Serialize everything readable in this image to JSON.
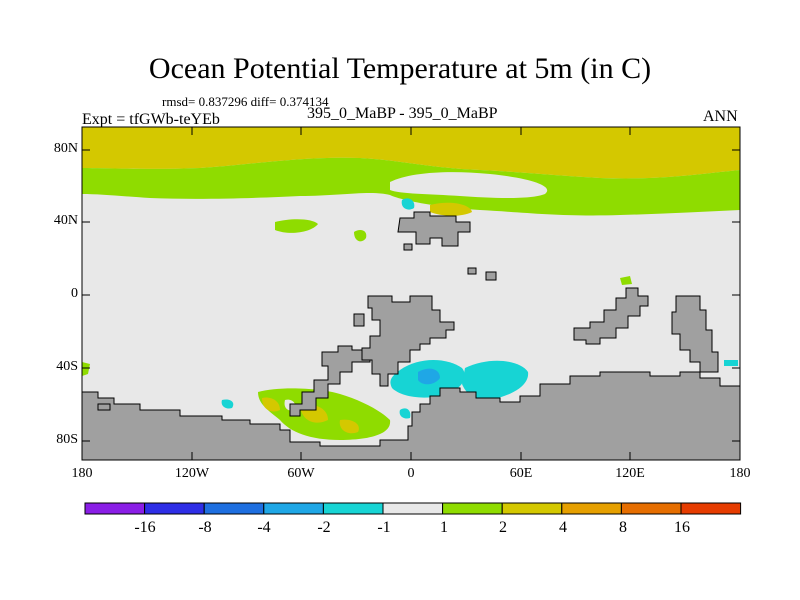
{
  "title": "Ocean Potential Temperature at 5m (in C)",
  "stats": "rmsd= 0.837296 diff= 0.374134",
  "expt": "Expt = tfGWb-teYEb",
  "subtitle": "395_0_MaBP - 395_0_MaBP",
  "season": "ANN",
  "y_ticks": [
    "80N",
    "40N",
    "0",
    "40S",
    "80S"
  ],
  "x_ticks": [
    "180",
    "120W",
    "60W",
    "0",
    "60E",
    "120E",
    "180"
  ],
  "colorbar": {
    "labels": [
      "-16",
      "-8",
      "-4",
      "-2",
      "-1",
      "1",
      "2",
      "4",
      "8",
      "16"
    ],
    "colors": [
      "#8a1ee6",
      "#2e2ee6",
      "#1e6fe0",
      "#1fa7e6",
      "#17d4d4",
      "#e8e8e8",
      "#8fdc00",
      "#d4c800",
      "#e6a000",
      "#e66e00",
      "#e63c00"
    ]
  },
  "colors": {
    "land": "#a0a0a0",
    "neutral": "#e8e8e8",
    "green": "#8fdc00",
    "yellow": "#d4c800",
    "cyan": "#17d4d4",
    "light_blue": "#1fa7e6"
  }
}
